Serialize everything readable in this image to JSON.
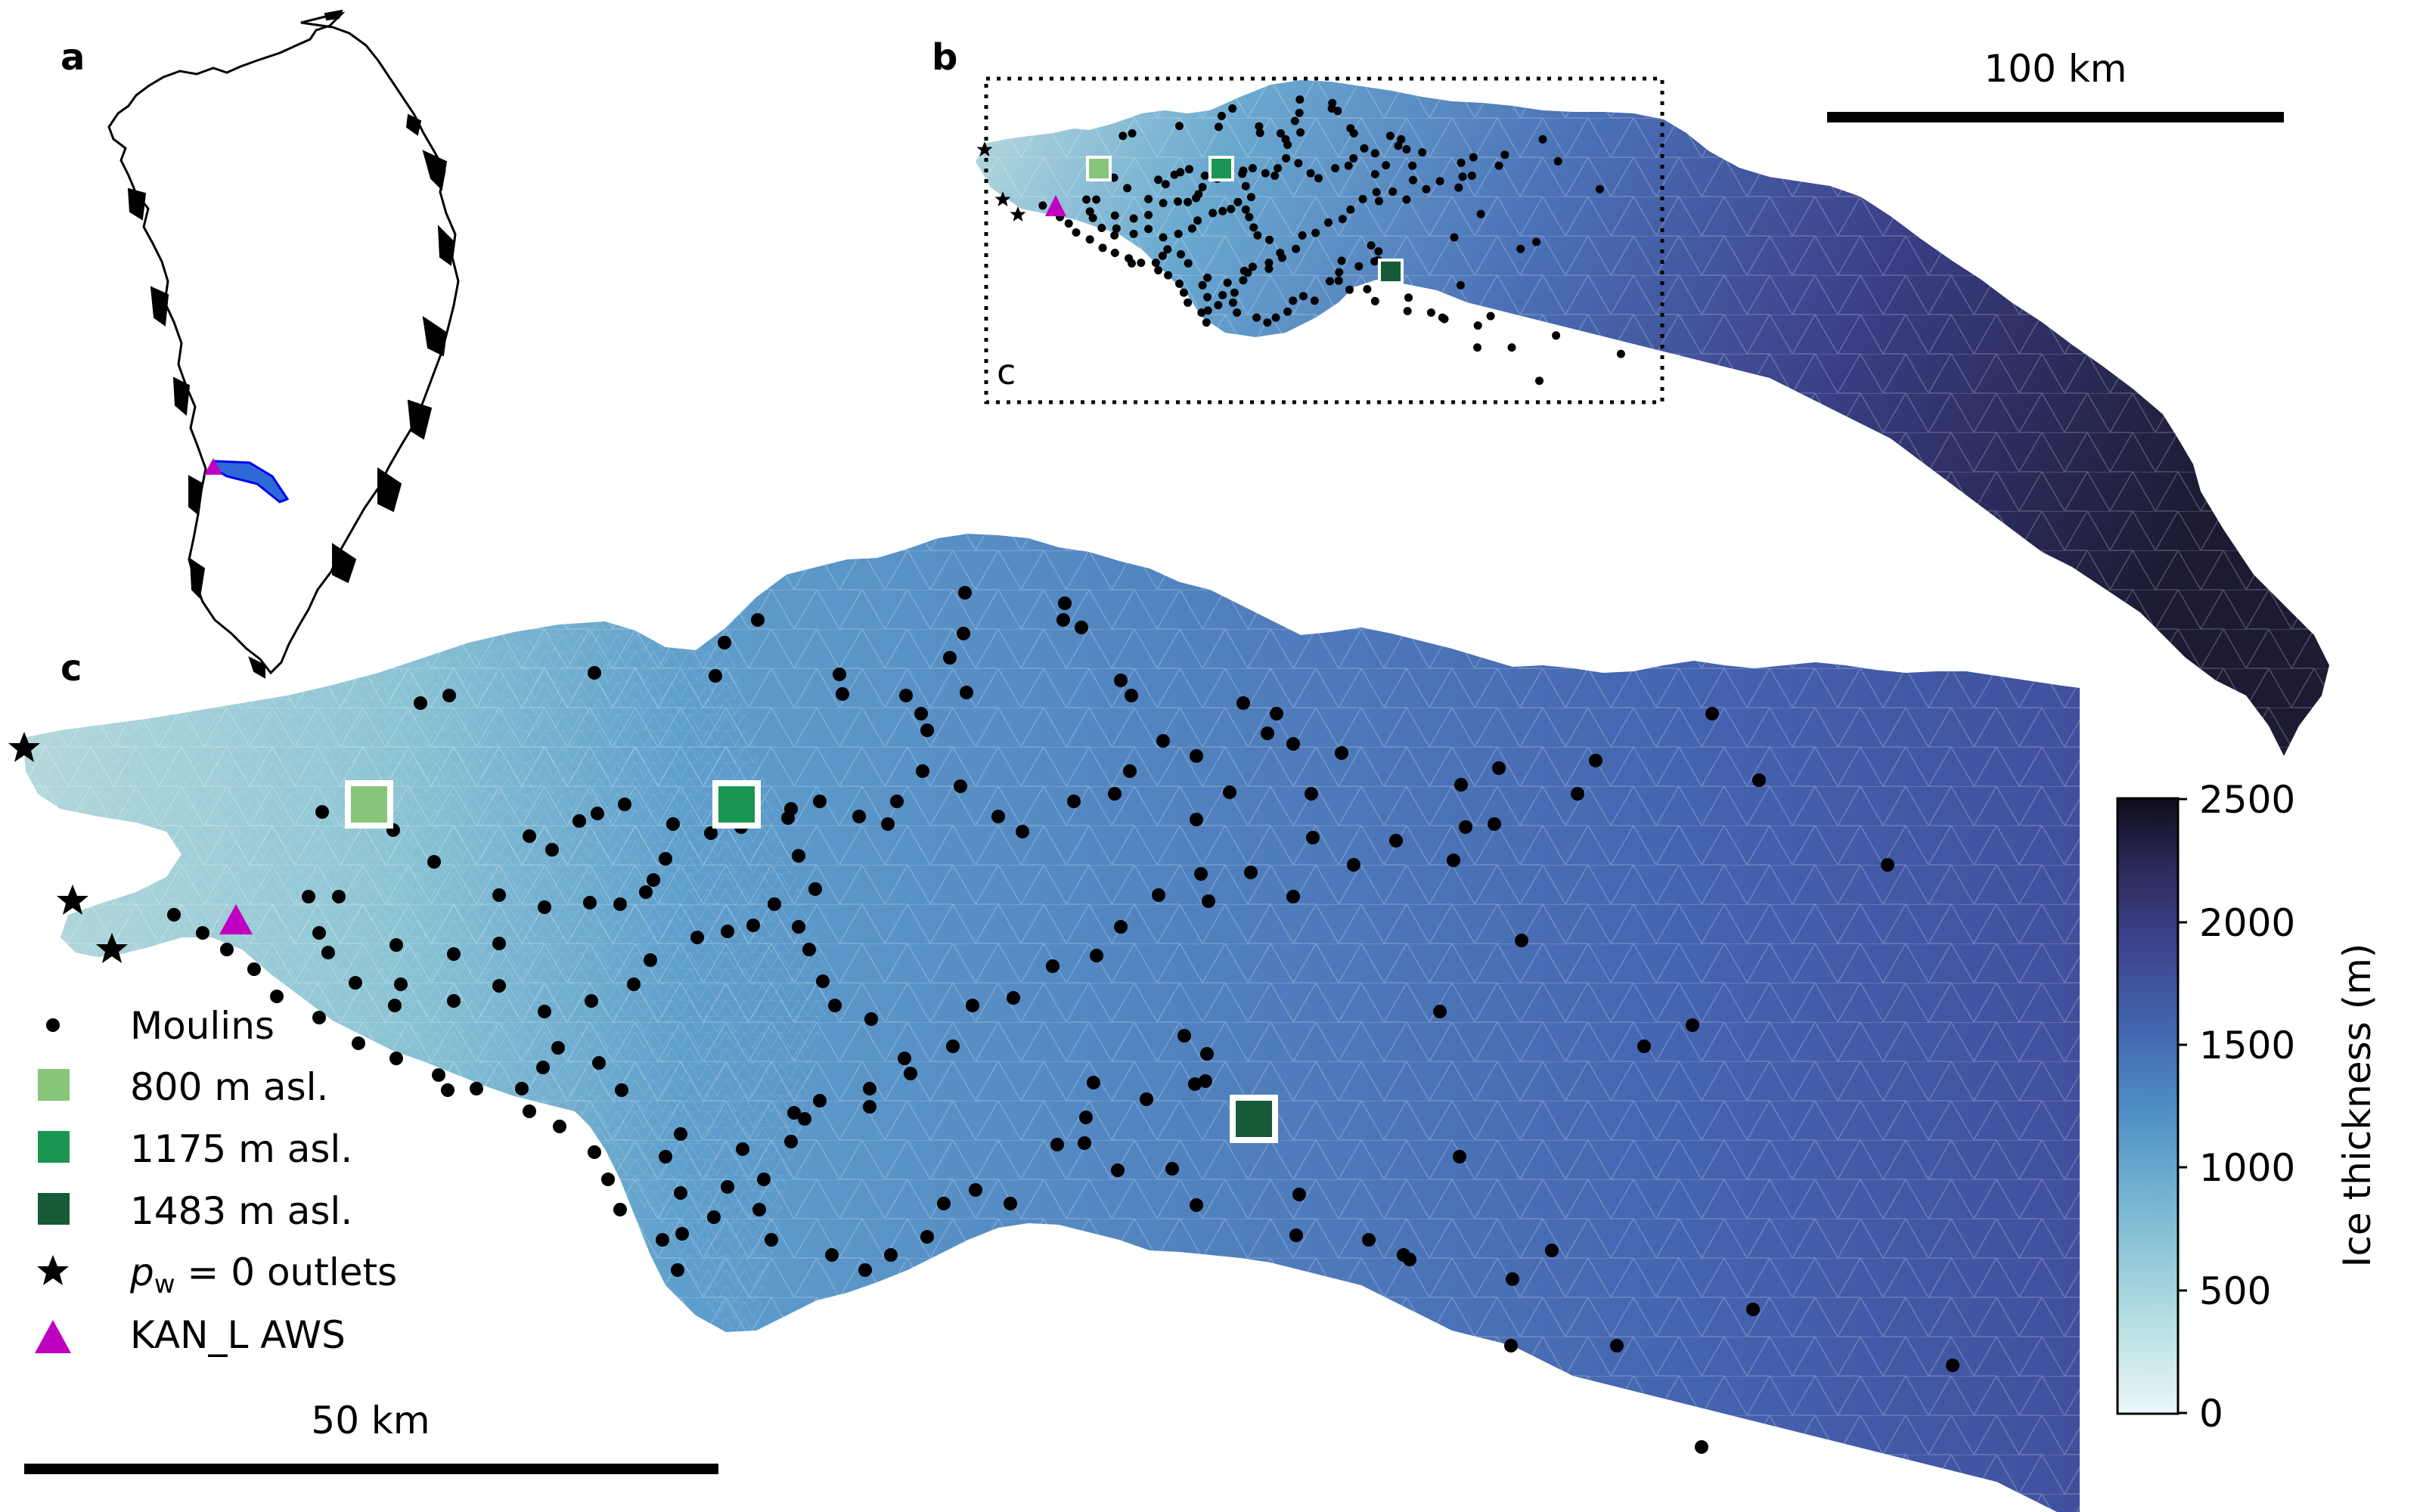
{
  "panels": {
    "a": {
      "letter": "a"
    },
    "b": {
      "letter": "b",
      "inset_label": "c",
      "scale_label": "100 km"
    },
    "c": {
      "letter": "c",
      "scale_label": "50 km"
    }
  },
  "legend": {
    "items": [
      {
        "key": "moulins",
        "label": "Moulins",
        "symbol": "dot",
        "color": "#000000"
      },
      {
        "key": "site800",
        "label": "800 m asl.",
        "symbol": "square",
        "color": "#86c57a"
      },
      {
        "key": "site1175",
        "label": "1175 m asl.",
        "symbol": "square",
        "color": "#1a9552"
      },
      {
        "key": "site1483",
        "label": "1483 m asl.",
        "symbol": "square",
        "color": "#175a38"
      },
      {
        "key": "outlets",
        "label_main": "p",
        "label_sub": "w",
        "label_rest": " = 0 outlets",
        "symbol": "star",
        "color": "#000000"
      },
      {
        "key": "aws",
        "label": "KAN_L AWS",
        "symbol": "triangle",
        "color": "#c000c0"
      }
    ]
  },
  "colorbar": {
    "label": "Ice thickness (m)",
    "ticks": [
      "2500",
      "2000",
      "1500",
      "1000",
      "500",
      "0"
    ],
    "range": [
      0,
      2500
    ],
    "colors": [
      "#e8f6f7",
      "#a9d8dc",
      "#6aaed0",
      "#4a7fbf",
      "#3f5aa6",
      "#3b3d84",
      "#2b2a55",
      "#0f0e1e"
    ]
  },
  "colors": {
    "thin_ice": "#a9d2d6",
    "mid_ice": "#5b98c9",
    "thick_ice": "#4559a8",
    "aws": "#c000c0"
  }
}
